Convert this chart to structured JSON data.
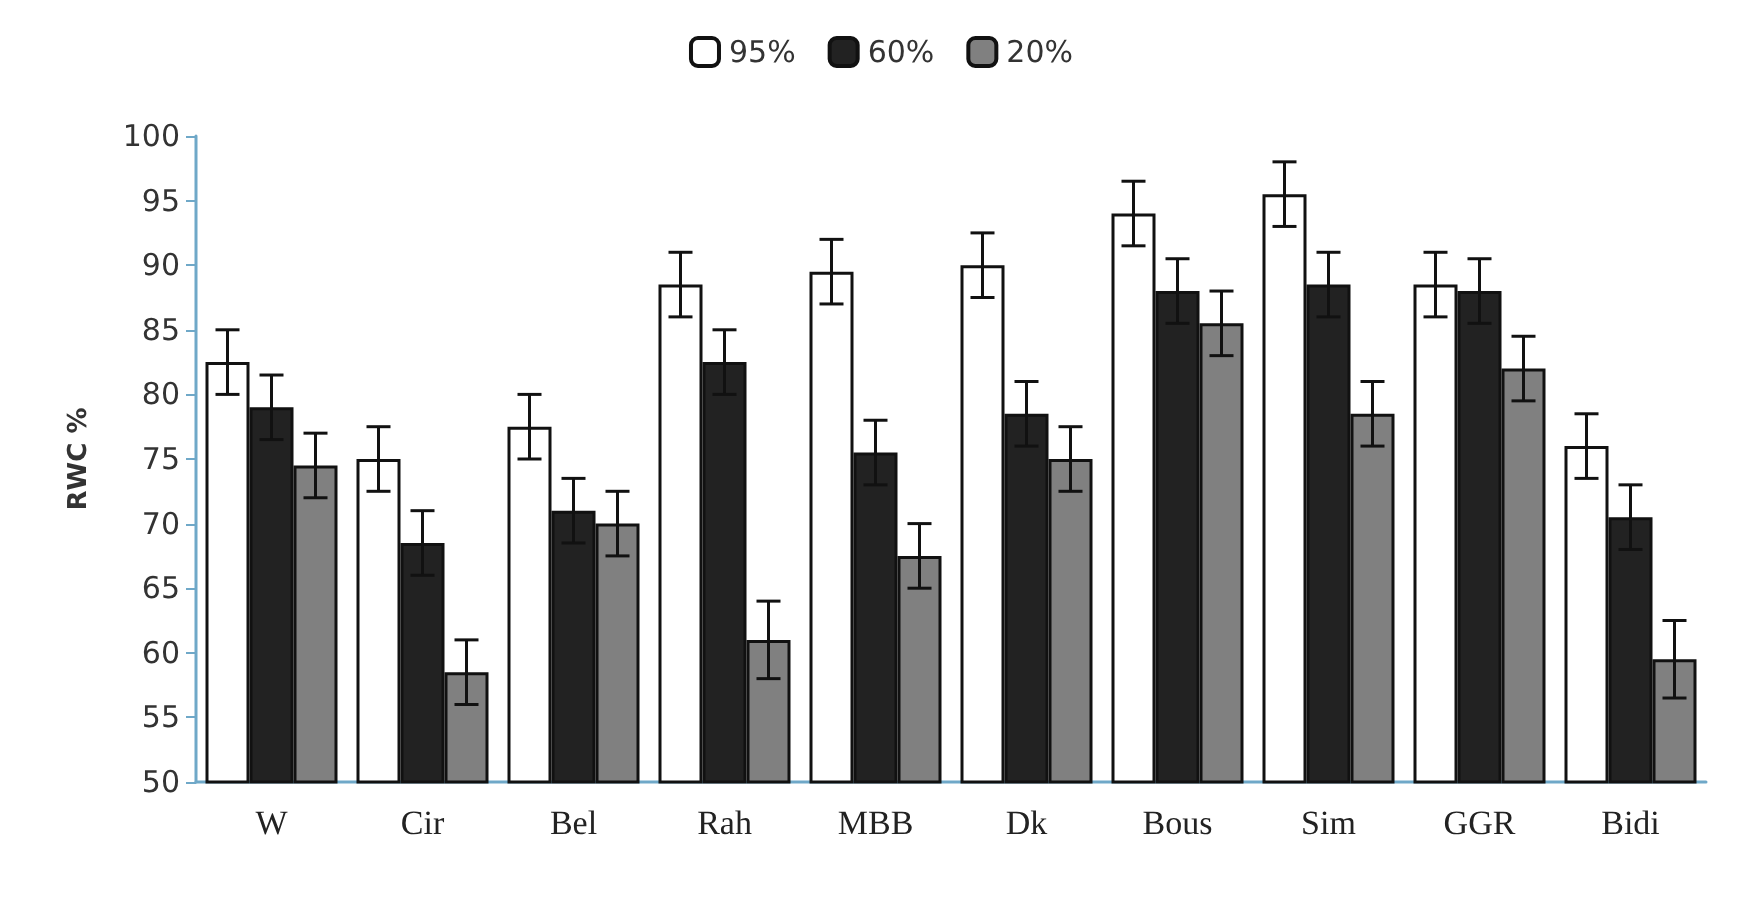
{
  "chart_data": {
    "type": "bar",
    "ylabel": "RWC %",
    "categories": [
      "W",
      "Cir",
      "Bel",
      "Rah",
      "MBB",
      "Dk",
      "Bous",
      "Sim",
      "GGR",
      "Bidi"
    ],
    "series": [
      {
        "name": "95%",
        "color": "#ffffff",
        "values": [
          82.5,
          75,
          77.5,
          88.5,
          89.5,
          90,
          94,
          95.5,
          88.5,
          76
        ],
        "errors": [
          2.5,
          2.5,
          2.5,
          2.5,
          2.5,
          2.5,
          2.5,
          2.5,
          2.5,
          2.5
        ]
      },
      {
        "name": "60%",
        "color": "#222222",
        "values": [
          79,
          68.5,
          71,
          82.5,
          75.5,
          78.5,
          88,
          88.5,
          88,
          70.5
        ],
        "errors": [
          2.5,
          2.5,
          2.5,
          2.5,
          2.5,
          2.5,
          2.5,
          2.5,
          2.5,
          2.5
        ]
      },
      {
        "name": "20%",
        "color": "#808080",
        "values": [
          74.5,
          58.5,
          70,
          61,
          67.5,
          75,
          85.5,
          78.5,
          82,
          59.5
        ],
        "errors": [
          2.5,
          2.5,
          2.5,
          3,
          2.5,
          2.5,
          2.5,
          2.5,
          2.5,
          3
        ]
      }
    ],
    "ylim": [
      50,
      100
    ],
    "yticks": [
      50,
      55,
      60,
      65,
      70,
      75,
      80,
      85,
      90,
      95,
      100
    ],
    "grid": false,
    "legend": "top"
  }
}
